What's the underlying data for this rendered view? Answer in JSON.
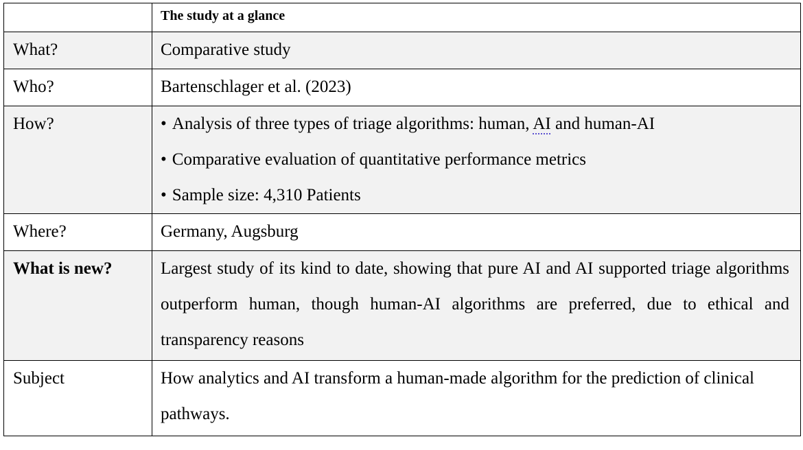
{
  "table": {
    "header": "The study at a glance",
    "what": {
      "label": "What?",
      "value": "Comparative study"
    },
    "who": {
      "label": "Who?",
      "value": "Bartenschlager et al. (2023)"
    },
    "how": {
      "label": "How?",
      "bullet_char": "•",
      "item1_before": "Analysis of three types of triage algorithms: human, ",
      "item1_ai": "AI",
      "item1_after": " and human-AI",
      "item2": "Comparative evaluation of quantitative performance metrics",
      "item3": "Sample size: 4,310 Patients"
    },
    "where": {
      "label": "Where?",
      "value": "Germany, Augsburg"
    },
    "what_is_new": {
      "label": "What is new?",
      "value": "Largest study of its kind to date, showing that pure AI and AI supported triage algorithms outperform human, though human-AI algorithms are preferred, due to ethical and transparency reasons"
    },
    "subject": {
      "label": "Subject",
      "value": "How analytics and AI transform a human-made algorithm for the prediction of clinical pathways."
    }
  }
}
